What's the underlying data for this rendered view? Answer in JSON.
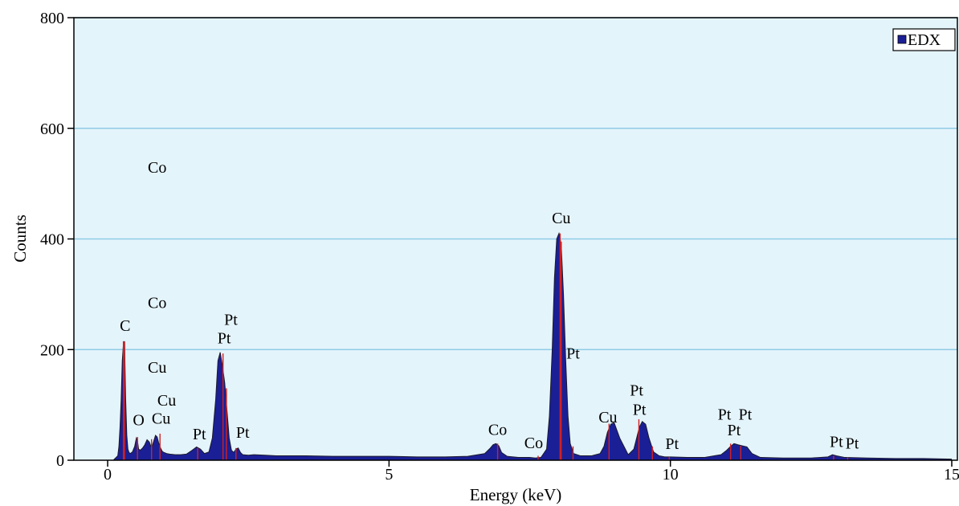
{
  "chart_data": {
    "type": "area",
    "xlabel": "Energy (keV)",
    "ylabel": "Counts",
    "xlim": [
      -0.6,
      15.1
    ],
    "ylim": [
      0,
      800
    ],
    "x_ticks": [
      0,
      5,
      10,
      15
    ],
    "y_ticks": [
      0,
      200,
      400,
      600,
      800
    ],
    "grid": "horizontal",
    "legend_position": "top-right",
    "colors": {
      "plot_background": "#e4f4fb",
      "grid": "#8fcbe6",
      "fill": "#1a1f96",
      "outline": "#1a1a2a",
      "marker": "#d32020"
    },
    "series": [
      {
        "name": "EDX",
        "x": [
          0.1,
          0.18,
          0.2,
          0.22,
          0.24,
          0.26,
          0.28,
          0.3,
          0.32,
          0.34,
          0.36,
          0.38,
          0.4,
          0.44,
          0.48,
          0.51,
          0.53,
          0.55,
          0.58,
          0.62,
          0.66,
          0.7,
          0.74,
          0.78,
          0.82,
          0.85,
          0.88,
          0.91,
          0.94,
          0.97,
          1.0,
          1.05,
          1.1,
          1.2,
          1.3,
          1.4,
          1.5,
          1.58,
          1.65,
          1.72,
          1.8,
          1.86,
          1.92,
          1.96,
          2.0,
          2.04,
          2.08,
          2.12,
          2.16,
          2.2,
          2.24,
          2.28,
          2.32,
          2.36,
          2.4,
          2.5,
          2.6,
          2.8,
          3.0,
          3.5,
          4.0,
          4.5,
          5.0,
          5.5,
          6.0,
          6.4,
          6.7,
          6.8,
          6.85,
          6.9,
          6.95,
          7.0,
          7.1,
          7.3,
          7.5,
          7.6,
          7.7,
          7.8,
          7.85,
          7.9,
          7.94,
          7.98,
          8.02,
          8.06,
          8.1,
          8.14,
          8.18,
          8.22,
          8.28,
          8.4,
          8.6,
          8.75,
          8.82,
          8.88,
          8.94,
          9.0,
          9.1,
          9.25,
          9.35,
          9.4,
          9.45,
          9.5,
          9.56,
          9.62,
          9.7,
          9.8,
          9.9,
          10.0,
          10.3,
          10.6,
          10.9,
          11.0,
          11.07,
          11.13,
          11.2,
          11.28,
          11.36,
          11.45,
          11.6,
          12.0,
          12.5,
          12.8,
          12.88,
          12.95,
          13.1,
          13.5,
          14.0,
          14.5,
          15.0
        ],
        "y": [
          0,
          8,
          25,
          60,
          110,
          180,
          210,
          215,
          110,
          45,
          20,
          14,
          12,
          15,
          25,
          40,
          35,
          20,
          18,
          22,
          28,
          37,
          33,
          22,
          35,
          45,
          42,
          30,
          22,
          16,
          14,
          12,
          11,
          10,
          10,
          11,
          18,
          24,
          20,
          12,
          15,
          40,
          110,
          180,
          195,
          170,
          140,
          90,
          40,
          18,
          14,
          20,
          22,
          14,
          10,
          9,
          10,
          9,
          8,
          8,
          7,
          7,
          7,
          6,
          6,
          7,
          12,
          22,
          28,
          30,
          26,
          14,
          7,
          5,
          5,
          4,
          5,
          20,
          80,
          200,
          330,
          400,
          410,
          390,
          300,
          180,
          80,
          30,
          12,
          8,
          8,
          12,
          25,
          50,
          65,
          68,
          40,
          10,
          20,
          40,
          60,
          70,
          65,
          40,
          15,
          8,
          6,
          6,
          5,
          5,
          10,
          18,
          25,
          30,
          28,
          26,
          24,
          12,
          5,
          4,
          4,
          6,
          10,
          8,
          5,
          4,
          3,
          3,
          2
        ]
      }
    ],
    "markers": [
      {
        "x": 0.28,
        "y": 215
      },
      {
        "x": 0.3,
        "y": 214
      },
      {
        "x": 0.53,
        "y": 42
      },
      {
        "x": 0.78,
        "y": 38
      },
      {
        "x": 0.93,
        "y": 48
      },
      {
        "x": 1.6,
        "y": 22
      },
      {
        "x": 2.05,
        "y": 193
      },
      {
        "x": 2.11,
        "y": 130
      },
      {
        "x": 2.28,
        "y": 22
      },
      {
        "x": 6.93,
        "y": 30
      },
      {
        "x": 7.65,
        "y": 8
      },
      {
        "x": 8.04,
        "y": 410
      },
      {
        "x": 8.06,
        "y": 395
      },
      {
        "x": 8.27,
        "y": 25
      },
      {
        "x": 8.91,
        "y": 66
      },
      {
        "x": 9.44,
        "y": 74
      },
      {
        "x": 9.68,
        "y": 25
      },
      {
        "x": 9.98,
        "y": 6
      },
      {
        "x": 11.07,
        "y": 30
      },
      {
        "x": 11.25,
        "y": 26
      },
      {
        "x": 12.9,
        "y": 8
      },
      {
        "x": 13.15,
        "y": 5
      }
    ],
    "annotations": [
      {
        "text": "Co",
        "x": 0.88,
        "y": 520
      },
      {
        "text": "Co",
        "x": 0.88,
        "y": 275
      },
      {
        "text": "C",
        "x": 0.31,
        "y": 234
      },
      {
        "text": "Pt",
        "x": 2.19,
        "y": 245
      },
      {
        "text": "Pt",
        "x": 2.07,
        "y": 211
      },
      {
        "text": "Cu",
        "x": 0.88,
        "y": 158
      },
      {
        "text": "Cu",
        "x": 1.05,
        "y": 99
      },
      {
        "text": "O",
        "x": 0.55,
        "y": 63
      },
      {
        "text": "Cu",
        "x": 0.95,
        "y": 66
      },
      {
        "text": "Pt",
        "x": 1.63,
        "y": 38
      },
      {
        "text": "Pt",
        "x": 2.4,
        "y": 41
      },
      {
        "text": "Co",
        "x": 6.93,
        "y": 46
      },
      {
        "text": "Co",
        "x": 7.57,
        "y": 22
      },
      {
        "text": "Cu",
        "x": 8.06,
        "y": 428
      },
      {
        "text": "Pt",
        "x": 8.27,
        "y": 184
      },
      {
        "text": "Cu",
        "x": 8.89,
        "y": 68
      },
      {
        "text": "Pt",
        "x": 9.4,
        "y": 117
      },
      {
        "text": "Pt",
        "x": 9.45,
        "y": 82
      },
      {
        "text": "Pt",
        "x": 10.03,
        "y": 20
      },
      {
        "text": "Pt",
        "x": 10.96,
        "y": 73
      },
      {
        "text": "Pt",
        "x": 11.33,
        "y": 73
      },
      {
        "text": "Pt",
        "x": 11.13,
        "y": 45
      },
      {
        "text": "Pt",
        "x": 12.95,
        "y": 24
      },
      {
        "text": "Pt",
        "x": 13.23,
        "y": 21
      }
    ]
  }
}
